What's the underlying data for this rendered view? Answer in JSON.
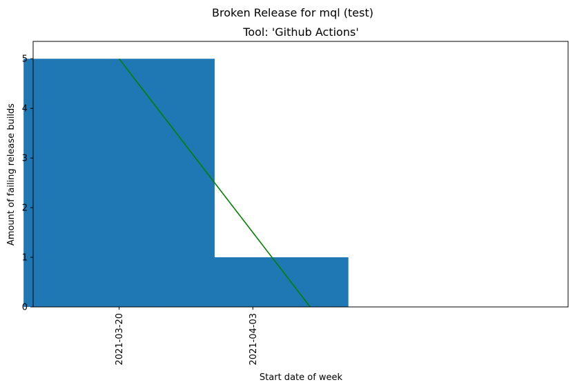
{
  "chart_data": {
    "type": "bar",
    "title": "Broken Release for mql (test)",
    "subtitle": "Tool: 'Github Actions'",
    "xlabel": "Start date of week",
    "ylabel": "Amount of failing release builds",
    "categories": [
      "2021-03-20",
      "2021-04-03"
    ],
    "x": [
      "2021-03-20",
      "2021-04-03"
    ],
    "values": [
      5,
      1
    ],
    "xlim": [
      "2021-03-11",
      "2021-05-06"
    ],
    "ylim": [
      0,
      5.35
    ],
    "yticks": [
      0,
      1,
      2,
      3,
      4,
      5
    ],
    "bar_color": "#1f77b4",
    "trend_line": {
      "color": "#008000",
      "x": [
        "2021-03-20",
        "2021-04-09"
      ],
      "y": [
        5,
        0
      ]
    },
    "grid": false,
    "legend": "none"
  }
}
